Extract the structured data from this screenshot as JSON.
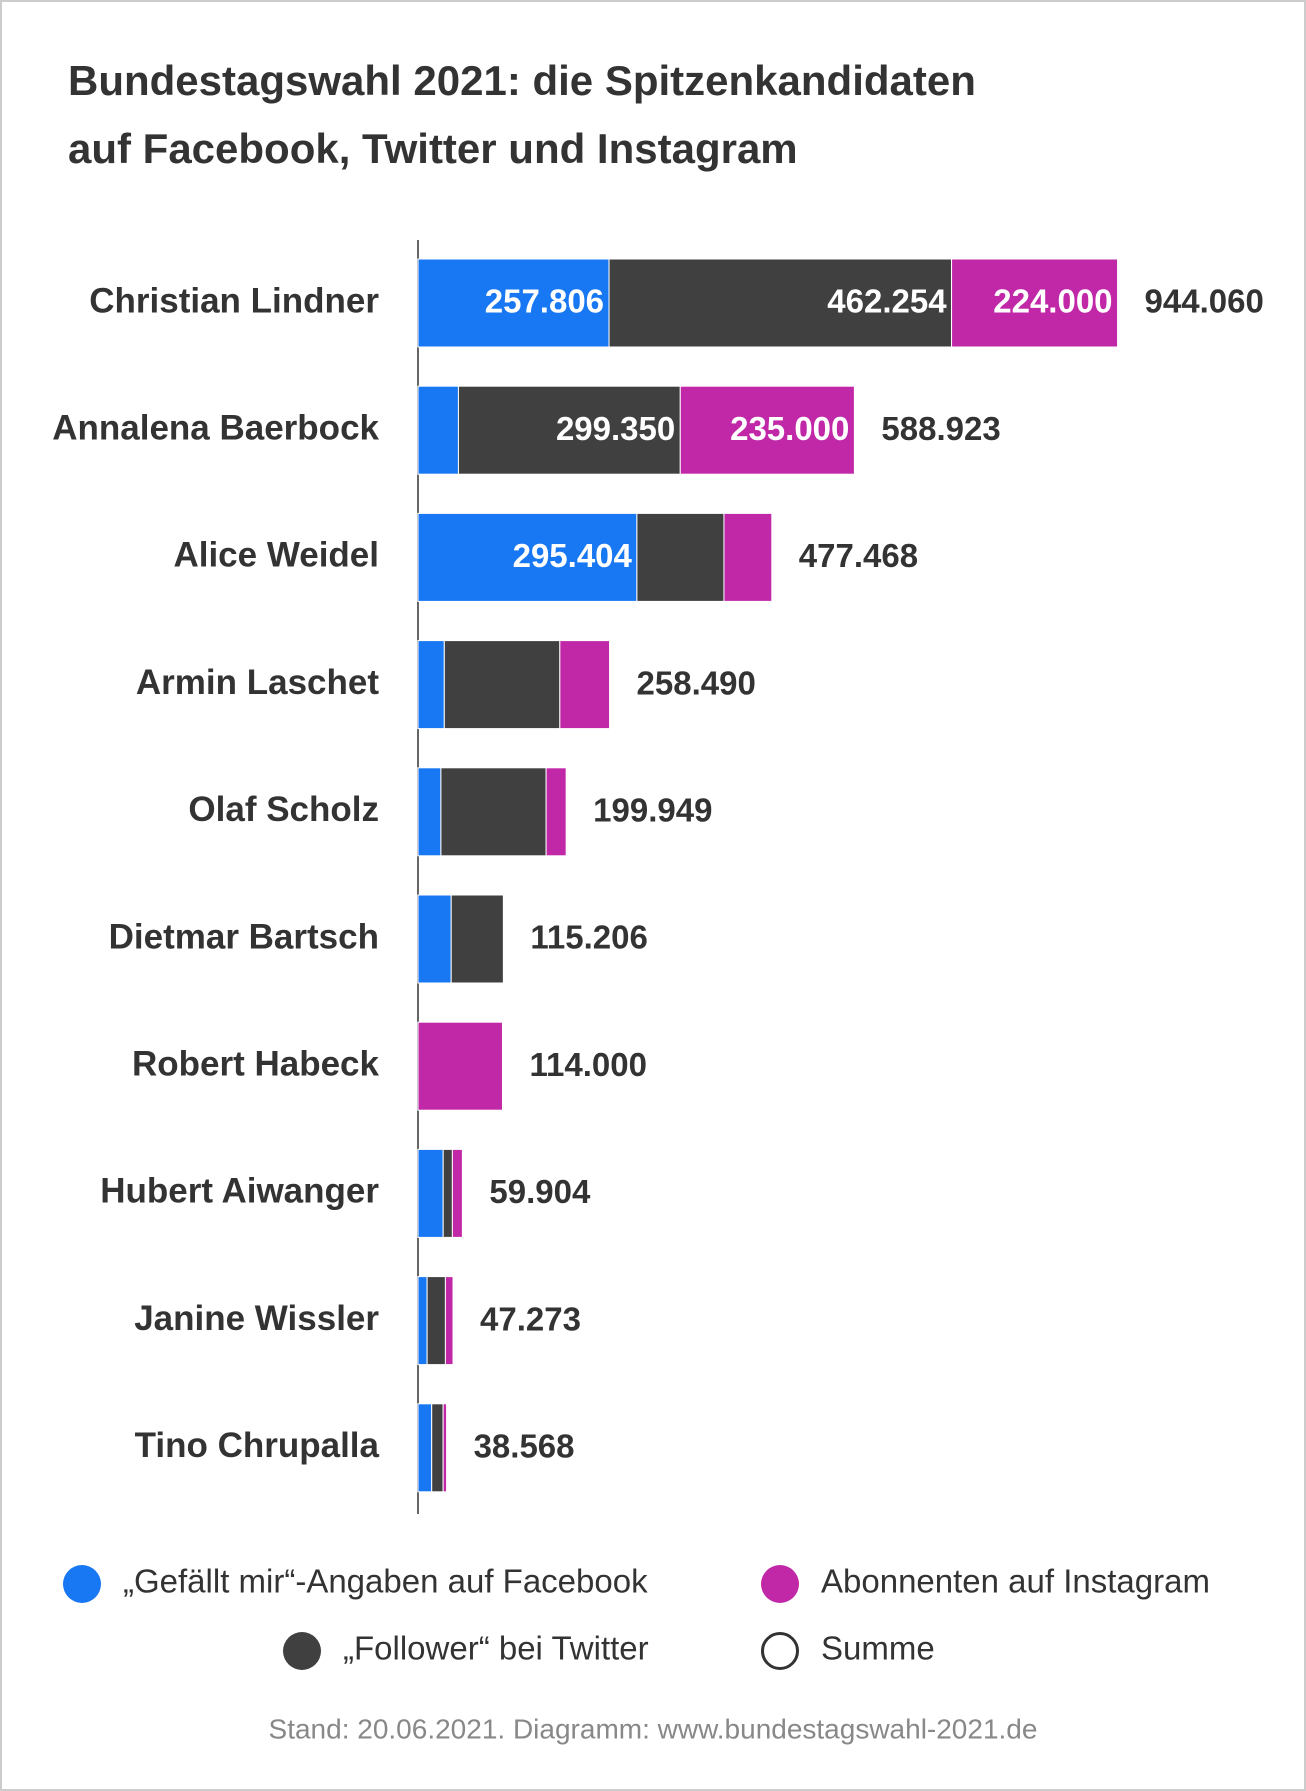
{
  "chart_data": {
    "type": "stacked-barh",
    "title": [
      "Bundestagswahl 2021: die Spitzenkandidaten",
      "auf Facebook, Twitter und Instagram"
    ],
    "categories": [
      "Christian Lindner",
      "Annalena Baerbock",
      "Alice Weidel",
      "Armin Laschet",
      "Olaf Scholz",
      "Dietmar Bartsch",
      "Robert Habeck",
      "Hubert Aiwanger",
      "Janine Wissler",
      "Tino Chrupalla"
    ],
    "series": [
      {
        "name": "„Gefällt mir“-Angaben auf Facebook",
        "color": "#1877f2",
        "values": [
          257806,
          54573,
          295404,
          35500,
          30900,
          44800,
          0,
          34000,
          12300,
          18500
        ],
        "value_labels": [
          "257.806",
          null,
          "295.404",
          null,
          null,
          null,
          null,
          null,
          null,
          null
        ]
      },
      {
        "name": "„Follower“ bei Twitter",
        "color": "#404040",
        "values": [
          462254,
          299350,
          117500,
          155900,
          142000,
          70406,
          0,
          12400,
          24700,
          15400
        ],
        "value_labels": [
          "462.254",
          "299.350",
          null,
          null,
          null,
          null,
          null,
          null,
          null,
          null
        ]
      },
      {
        "name": "Abonnenten auf Instagram",
        "color": "#c128a8",
        "values": [
          224000,
          235000,
          64564,
          67090,
          27049,
          0,
          114000,
          13504,
          10273,
          4668
        ],
        "value_labels": [
          "224.000",
          "235.000",
          null,
          null,
          null,
          null,
          null,
          null,
          null,
          null
        ]
      }
    ],
    "total": {
      "name": "Summe",
      "values": [
        944060,
        588923,
        477468,
        258490,
        199949,
        115206,
        114000,
        59904,
        47273,
        38568
      ],
      "value_labels": [
        "944.060",
        "588.923",
        "477.468",
        "258.490",
        "199.949",
        "115.206",
        "114.000",
        "59.904",
        "47.273",
        "38.568"
      ]
    },
    "xlim": [
      0,
      1000000
    ],
    "footer": "Stand: 20.06.2021. Diagramm: www.bundestagswahl-2021.de"
  }
}
